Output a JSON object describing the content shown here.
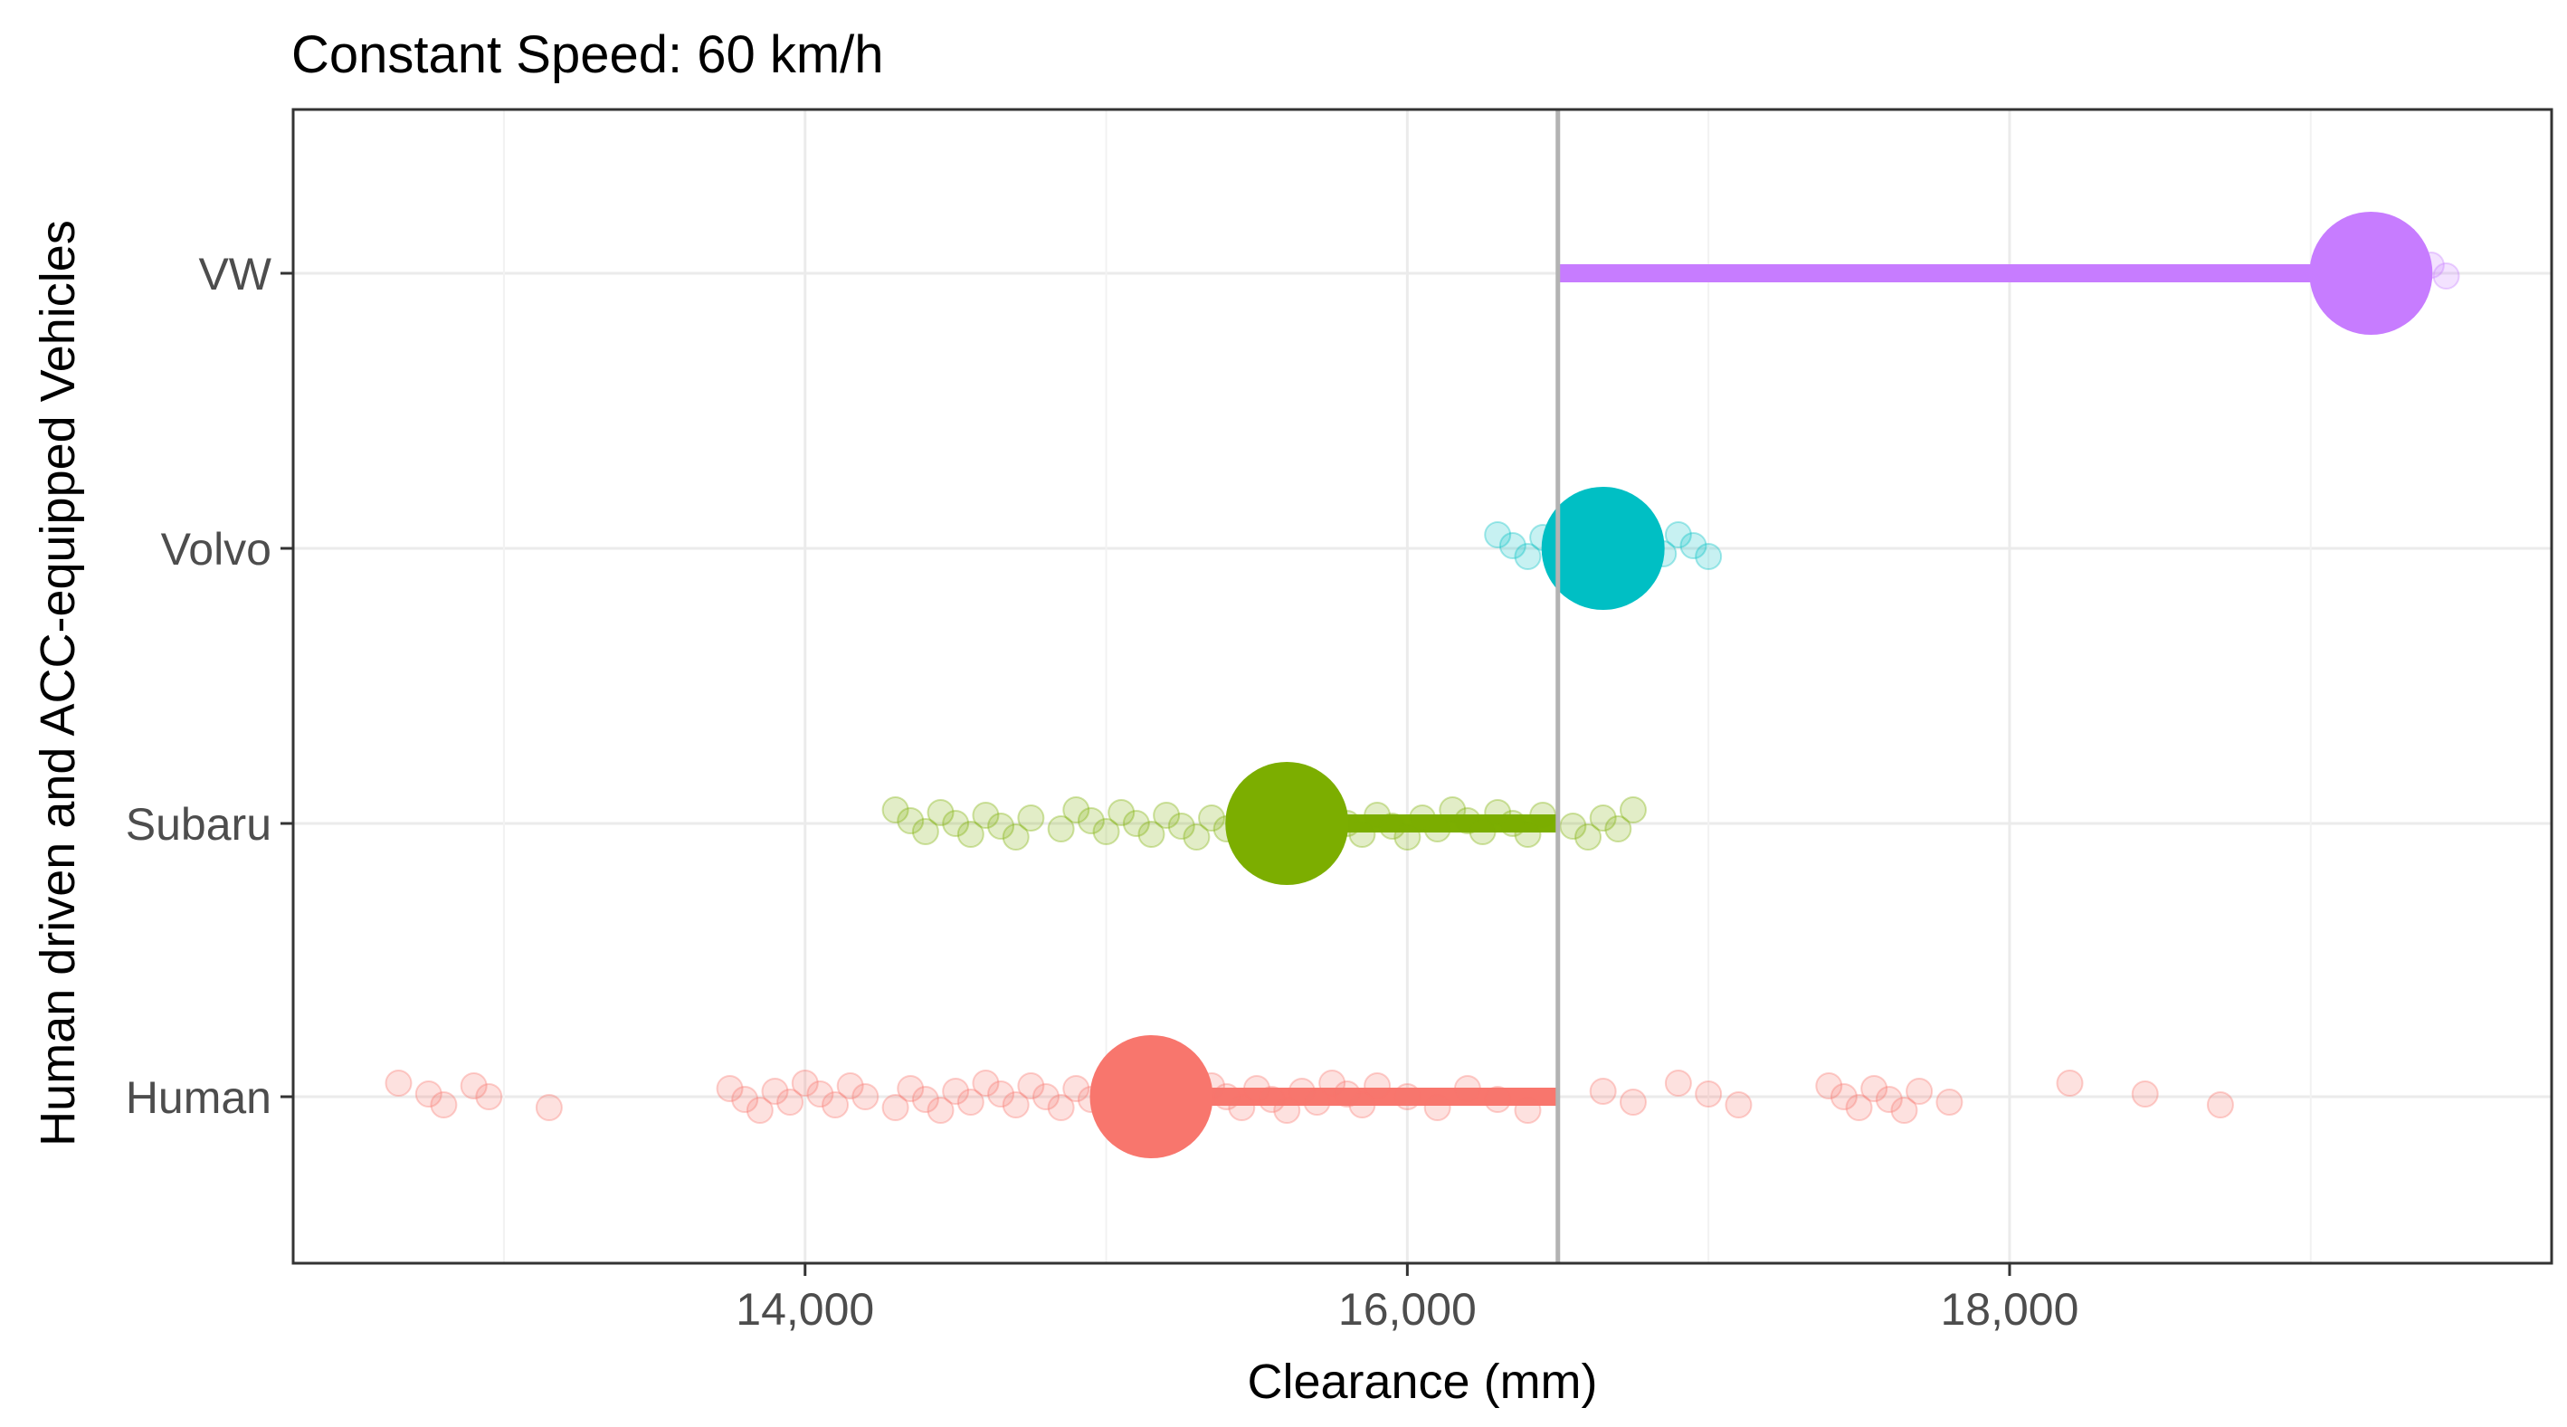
{
  "chart_data": {
    "type": "scatter",
    "title": "Constant Speed: 60 km/h",
    "xlabel": "Clearance (mm)",
    "ylabel": "Human driven and ACC-equipped Vehicles",
    "xlim": [
      12300,
      19800
    ],
    "x_ticks": [
      14000,
      16000,
      18000
    ],
    "x_tick_labels": [
      "14,000",
      "16,000",
      "18,000"
    ],
    "categories": [
      "Human",
      "Subaru",
      "Volvo",
      "VW"
    ],
    "reference_x": 16500,
    "grid": true,
    "colors": {
      "Human": "#F8766D",
      "Subaru": "#7CAE00",
      "Volvo": "#00BFC4",
      "VW": "#C77CFF",
      "reference_line": "#b3b3b3"
    },
    "series": [
      {
        "category": "Human",
        "mean": 15150,
        "raw_points": [
          12650,
          12750,
          12800,
          12900,
          12950,
          13150,
          13750,
          13800,
          13850,
          13900,
          13950,
          14000,
          14050,
          14100,
          14150,
          14200,
          14300,
          14350,
          14400,
          14450,
          14500,
          14550,
          14600,
          14650,
          14700,
          14750,
          14800,
          14850,
          14900,
          14950,
          15000,
          15050,
          15100,
          15200,
          15250,
          15300,
          15350,
          15400,
          15450,
          15500,
          15550,
          15600,
          15650,
          15700,
          15750,
          15800,
          15850,
          15900,
          16000,
          16100,
          16200,
          16300,
          16400,
          16650,
          16750,
          16900,
          17000,
          17100,
          17400,
          17450,
          17500,
          17550,
          17600,
          17650,
          17700,
          17800,
          18200,
          18450,
          18700
        ]
      },
      {
        "category": "Subaru",
        "mean": 15600,
        "raw_points": [
          14300,
          14350,
          14400,
          14450,
          14500,
          14550,
          14600,
          14650,
          14700,
          14750,
          14850,
          14900,
          14950,
          15000,
          15050,
          15100,
          15150,
          15200,
          15250,
          15300,
          15350,
          15400,
          15450,
          15500,
          15700,
          15750,
          15800,
          15850,
          15900,
          15950,
          16000,
          16050,
          16100,
          16150,
          16200,
          16250,
          16300,
          16350,
          16400,
          16450,
          16550,
          16600,
          16650,
          16700,
          16750
        ]
      },
      {
        "category": "Volvo",
        "mean": 16650,
        "raw_points": [
          16300,
          16350,
          16400,
          16450,
          16500,
          16550,
          16600,
          16700,
          16750,
          16800,
          16850,
          16900,
          16950,
          17000
        ]
      },
      {
        "category": "VW",
        "mean": 19200,
        "raw_points": [
          19050,
          19100,
          19150,
          19250,
          19300,
          19350,
          19400,
          19450
        ]
      }
    ]
  }
}
